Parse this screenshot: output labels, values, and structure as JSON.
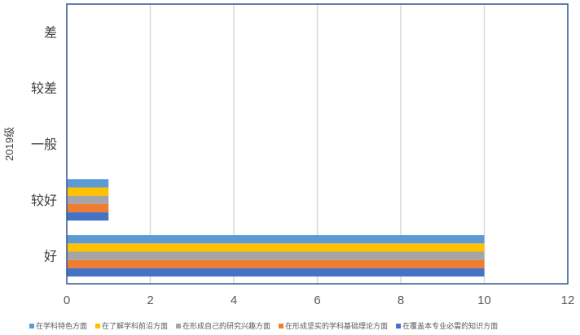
{
  "chart_data": {
    "type": "bar",
    "orientation": "horizontal",
    "ylabel": "2019级",
    "xlim": [
      0,
      12
    ],
    "x_ticks": [
      "0",
      "2",
      "4",
      "6",
      "8",
      "10",
      "12"
    ],
    "categories": [
      "好",
      "较好",
      "一般",
      "较差",
      "差"
    ],
    "series": [
      {
        "name": "在覆盖本专业必需的知识方面",
        "color": "#4472C4",
        "values": [
          10,
          1,
          0,
          0,
          0
        ]
      },
      {
        "name": "在形成坚实的学科基础理论方面",
        "color": "#ED7D31",
        "values": [
          10,
          1,
          0,
          0,
          0
        ]
      },
      {
        "name": "在形成自己的研究兴趣方面",
        "color": "#A5A5A5",
        "values": [
          10,
          1,
          0,
          0,
          0
        ]
      },
      {
        "name": "在了解学科前沿方面",
        "color": "#FFC000",
        "values": [
          10,
          1,
          0,
          0,
          0
        ]
      },
      {
        "name": "在学科特色方面",
        "color": "#5B9BD5",
        "values": [
          10,
          1,
          0,
          0,
          0
        ]
      }
    ],
    "legend_order": [
      4,
      3,
      2,
      1,
      0
    ],
    "legend_position": "bottom",
    "grid": true,
    "plot_border_color": "#2F5597"
  }
}
